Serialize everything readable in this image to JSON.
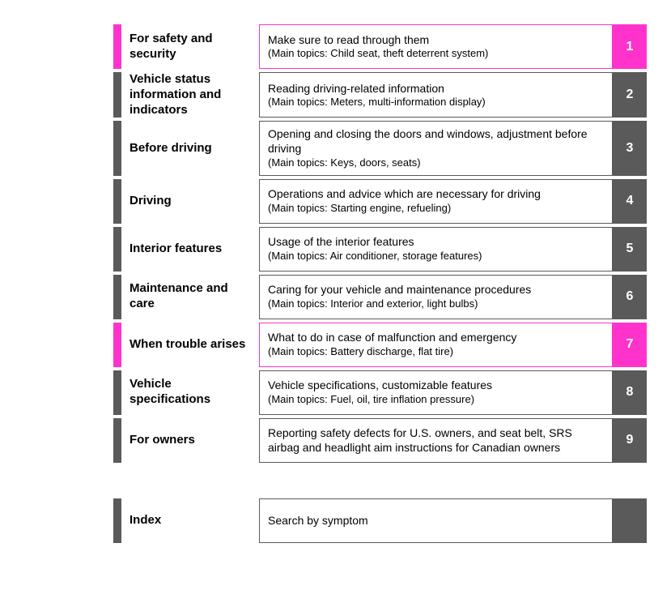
{
  "colors": {
    "gray": "#5a5a5a",
    "magenta": "#ff33cc",
    "border_gray": "#5a5a5a",
    "border_magenta": "#ff33cc"
  },
  "sections": [
    {
      "title": "For safety and security",
      "desc": "Make sure to read through them",
      "subtopics": "(Main topics: Child seat, theft deterrent system)",
      "num": "1",
      "highlight": true
    },
    {
      "title": "Vehicle status information and indicators",
      "desc": "Reading driving-related information",
      "subtopics": "(Main topics: Meters, multi-information display)",
      "num": "2",
      "highlight": false
    },
    {
      "title": "Before driving",
      "desc": "Opening and closing the doors and windows, adjustment before driving",
      "subtopics": "(Main topics: Keys, doors, seats)",
      "num": "3",
      "highlight": false
    },
    {
      "title": "Driving",
      "desc": "Operations and advice which are necessary for driving",
      "subtopics": "(Main topics: Starting engine, refueling)",
      "num": "4",
      "highlight": false
    },
    {
      "title": "Interior features",
      "desc": "Usage of the interior features",
      "subtopics": "(Main topics: Air conditioner, storage features)",
      "num": "5",
      "highlight": false
    },
    {
      "title": "Maintenance and care",
      "desc": "Caring for your vehicle and maintenance procedures",
      "subtopics": "(Main topics: Interior and exterior, light bulbs)",
      "num": "6",
      "highlight": false
    },
    {
      "title": "When trouble arises",
      "desc": "What to do in case of malfunction and emergency",
      "subtopics": "(Main topics: Battery discharge, flat tire)",
      "num": "7",
      "highlight": true
    },
    {
      "title": "Vehicle specifications",
      "desc": "Vehicle specifications, customizable features",
      "subtopics": "(Main topics: Fuel, oil, tire inflation pressure)",
      "num": "8",
      "highlight": false
    },
    {
      "title": "For owners",
      "desc": "Reporting safety defects for U.S. owners, and seat belt, SRS airbag and headlight aim instructions for Canadian owners",
      "subtopics": "",
      "num": "9",
      "highlight": false
    }
  ],
  "index": {
    "title": "Index",
    "desc": "Search by symptom"
  }
}
